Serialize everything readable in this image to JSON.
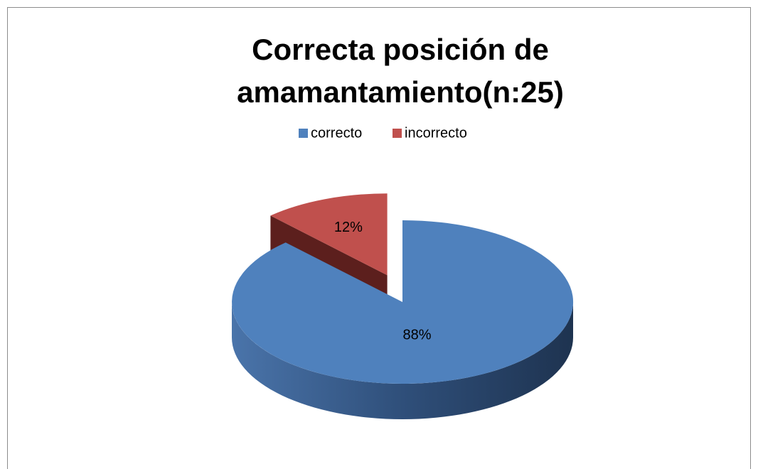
{
  "chart_data": {
    "type": "pie",
    "title": "Correcta posición de amamantamiento(n:25)",
    "categories": [
      "correcto",
      "incorrecto"
    ],
    "values": [
      88,
      12
    ],
    "value_labels": [
      "88%",
      "12%"
    ],
    "colors": [
      "#4f81bd",
      "#c0504d"
    ],
    "legend": "top"
  }
}
